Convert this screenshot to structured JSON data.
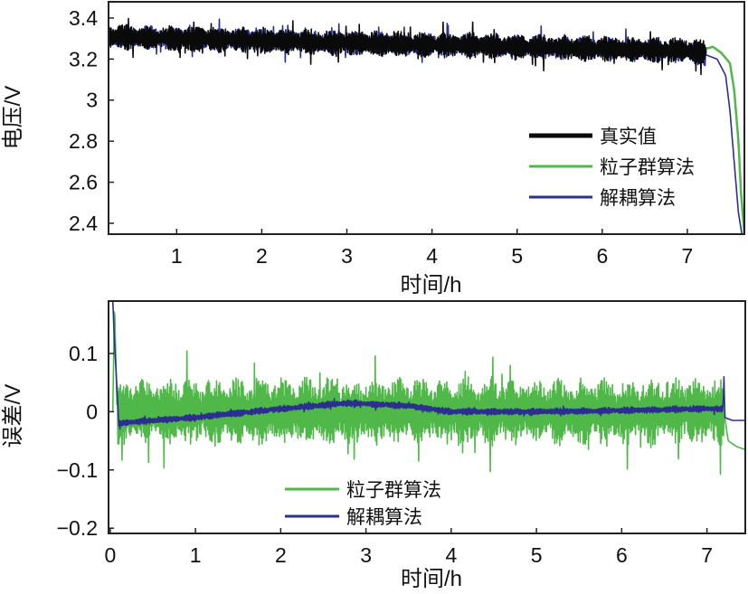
{
  "chart_data": [
    {
      "type": "line",
      "title": "",
      "xlabel": "时间/h",
      "ylabel": "电压/V",
      "xlim": [
        0.2,
        7.67
      ],
      "ylim": [
        2.347,
        3.479
      ],
      "xticks": [
        1,
        2,
        3,
        4,
        5,
        6,
        7
      ],
      "xtick_labels": [
        "1",
        "2",
        "3",
        "4",
        "5",
        "6",
        "7"
      ],
      "yticks": [
        2.4,
        2.6,
        2.8,
        3.0,
        3.2,
        3.4
      ],
      "ytick_labels": [
        "2.4",
        "2.6",
        "2.8",
        "3",
        "3.2",
        "3.4"
      ],
      "grid": false,
      "legend_position": "bottom-right",
      "series": [
        {
          "name": "解耦算法",
          "color": "#2b2f8f",
          "noise_band": 0.06,
          "x": [
            0.2,
            1,
            2,
            3,
            4,
            5,
            6,
            7,
            7.22,
            7.35,
            7.45,
            7.5,
            7.55,
            7.6,
            7.64
          ],
          "y": [
            3.31,
            3.3,
            3.29,
            3.28,
            3.27,
            3.26,
            3.25,
            3.24,
            3.22,
            3.2,
            3.12,
            2.95,
            2.7,
            2.45,
            2.35
          ],
          "noise_until": 7.22
        },
        {
          "name": "粒子群算法",
          "color": "#4fb848",
          "noise_band": 0.0,
          "x": [
            7.22,
            7.3,
            7.4,
            7.5,
            7.55,
            7.6,
            7.63,
            7.67
          ],
          "y": [
            3.25,
            3.26,
            3.23,
            3.18,
            3.05,
            2.8,
            2.55,
            2.35
          ],
          "noise_until": 0
        },
        {
          "name": "真实值",
          "color": "#0a0a0a",
          "noise_band": 0.065,
          "x": [
            0.2,
            1,
            2,
            3,
            4,
            5,
            6,
            7,
            7.22
          ],
          "y": [
            3.31,
            3.3,
            3.29,
            3.28,
            3.27,
            3.26,
            3.25,
            3.24,
            3.23
          ],
          "noise_until": 7.22
        }
      ],
      "legend": [
        "真实值",
        "粒子群算法",
        "解耦算法"
      ]
    },
    {
      "type": "line",
      "title": "",
      "xlabel": "时间/h",
      "ylabel": "误差/V",
      "xlim": [
        -0.02,
        7.45
      ],
      "ylim": [
        -0.209,
        0.19
      ],
      "xticks": [
        0,
        1,
        2,
        3,
        4,
        5,
        6,
        7
      ],
      "xtick_labels": [
        "0",
        "1",
        "2",
        "3",
        "4",
        "5",
        "6",
        "7"
      ],
      "yticks": [
        0.1,
        0,
        -0.1,
        -0.2
      ],
      "ytick_labels": [
        "0.1",
        "0",
        "−0.1",
        "−0.2"
      ],
      "grid": false,
      "legend_position": "bottom-center",
      "series": [
        {
          "name": "粒子群算法",
          "color": "#4fb848",
          "noise_band": 0.06,
          "x": [
            0.03,
            0.05,
            0.08,
            0.2,
            1,
            2,
            3,
            4,
            5,
            6,
            7,
            7.2,
            7.25,
            7.35,
            7.45
          ],
          "y": [
            0.0,
            0.19,
            0.0,
            0.0,
            0.0,
            0.0,
            0.0,
            0.0,
            0.0,
            0.0,
            0.0,
            0.0,
            -0.05,
            -0.06,
            -0.065
          ],
          "noise_from": 0.08,
          "noise_until": 7.2
        },
        {
          "name": "解耦算法",
          "color": "#2b2f8f",
          "noise_band": 0.006,
          "x": [
            0.03,
            0.05,
            0.1,
            0.5,
            1,
            2,
            2.8,
            3.5,
            4,
            5,
            6,
            7,
            7.19,
            7.2,
            7.21,
            7.3,
            7.45
          ],
          "y": [
            0.19,
            0.12,
            -0.02,
            -0.015,
            -0.01,
            0.005,
            0.015,
            0.01,
            0.0,
            0.0,
            0.002,
            0.005,
            0.005,
            0.06,
            -0.01,
            -0.015,
            -0.015
          ],
          "noise_from": 0.1,
          "noise_until": 7.19
        }
      ],
      "legend": [
        "粒子群算法",
        "解耦算法"
      ]
    }
  ]
}
